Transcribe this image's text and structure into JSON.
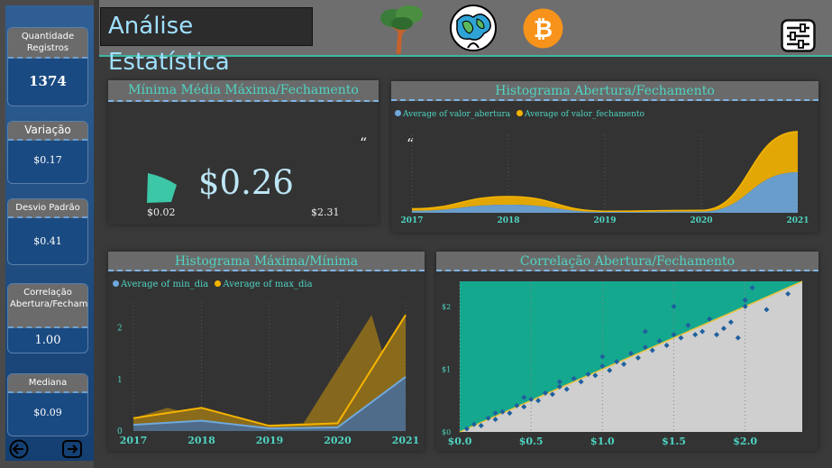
{
  "header": {
    "title": "Análise Estatística"
  },
  "sidebar": {
    "kpis": [
      {
        "label": "Quantidade Registros",
        "value": "1374"
      },
      {
        "label": "Variação",
        "value": "$0.17"
      },
      {
        "label": "Desvio Padrão",
        "value": "$0.41"
      },
      {
        "label": "Correlação Abertura/Fechamento",
        "value": "1.00"
      },
      {
        "label": "Mediana",
        "value": "$0.09"
      }
    ]
  },
  "gauge_panel": {
    "title": "Mínima Média Máxima/Fechamento",
    "value": "$0.26",
    "min": "$0.02",
    "max": "$2.31"
  },
  "hist_open_close": {
    "title": "Histograma Abertura/Fechamento",
    "legend": [
      "Average of valor_abertura",
      "Average of valor_fechamento"
    ]
  },
  "hist_max_min": {
    "title": "Histograma Máxima/Mínima",
    "legend": [
      "Average of min_dia",
      "Average of max_dia"
    ]
  },
  "correlation": {
    "title": "Correlação Abertura/Fechamento"
  },
  "colors": {
    "accent": "#4fd4c1",
    "blue": "#6fa8dc",
    "gold": "#f5b400",
    "teal": "#14a88e"
  },
  "chart_data": [
    {
      "type": "area",
      "x": [
        "2017",
        "2018",
        "2019",
        "2020",
        "2021"
      ],
      "series": [
        {
          "name": "Average of valor_abertura",
          "values": [
            0.05,
            0.2,
            0.02,
            0.03,
            1.0
          ]
        },
        {
          "name": "Average of valor_fechamento",
          "values": [
            0.05,
            0.2,
            0.02,
            0.03,
            1.0
          ]
        }
      ],
      "stacked": true,
      "legend": "top-left"
    },
    {
      "type": "area",
      "x": [
        "2017",
        "2018",
        "2019",
        "2020",
        "2021"
      ],
      "series": [
        {
          "name": "Average of min_dia",
          "values": [
            0.12,
            0.2,
            0.05,
            0.07,
            1.05
          ]
        },
        {
          "name": "Average of max_dia",
          "values": [
            0.25,
            0.45,
            0.1,
            0.15,
            2.25
          ]
        }
      ],
      "yticks": [
        "0",
        "1",
        "2"
      ],
      "ylim": [
        0,
        2.5
      ],
      "legend": "top-left"
    },
    {
      "type": "scatter",
      "xticks": [
        "$0.0",
        "$0.5",
        "$1.0",
        "$1.5",
        "$2.0"
      ],
      "yticks": [
        "$0",
        "$1",
        "$2"
      ],
      "xlim": [
        0,
        2.4
      ],
      "ylim": [
        0,
        2.4
      ],
      "trend_line": true,
      "points": [
        [
          0.05,
          0.05
        ],
        [
          0.1,
          0.12
        ],
        [
          0.15,
          0.1
        ],
        [
          0.2,
          0.22
        ],
        [
          0.25,
          0.2
        ],
        [
          0.3,
          0.32
        ],
        [
          0.35,
          0.3
        ],
        [
          0.4,
          0.42
        ],
        [
          0.45,
          0.4
        ],
        [
          0.5,
          0.52
        ],
        [
          0.55,
          0.5
        ],
        [
          0.6,
          0.62
        ],
        [
          0.65,
          0.6
        ],
        [
          0.7,
          0.72
        ],
        [
          0.75,
          0.68
        ],
        [
          0.8,
          0.85
        ],
        [
          0.85,
          0.8
        ],
        [
          0.9,
          0.92
        ],
        [
          0.95,
          0.9
        ],
        [
          1.0,
          1.05
        ],
        [
          1.05,
          0.98
        ],
        [
          1.1,
          1.12
        ],
        [
          1.15,
          1.08
        ],
        [
          1.2,
          1.25
        ],
        [
          1.25,
          1.18
        ],
        [
          1.3,
          1.35
        ],
        [
          1.35,
          1.3
        ],
        [
          1.4,
          1.45
        ],
        [
          1.45,
          1.38
        ],
        [
          1.5,
          1.55
        ],
        [
          1.55,
          1.5
        ],
        [
          1.6,
          1.7
        ],
        [
          1.65,
          1.55
        ],
        [
          1.7,
          1.6
        ],
        [
          1.75,
          1.8
        ],
        [
          1.8,
          1.55
        ],
        [
          1.85,
          1.65
        ],
        [
          1.95,
          1.5
        ],
        [
          2.0,
          2.0
        ],
        [
          2.0,
          2.1
        ],
        [
          2.15,
          1.95
        ],
        [
          2.3,
          2.2
        ],
        [
          2.05,
          2.3
        ],
        [
          1.5,
          2.0
        ],
        [
          1.3,
          1.6
        ],
        [
          1.0,
          1.2
        ],
        [
          0.7,
          0.8
        ],
        [
          0.45,
          0.55
        ],
        [
          0.25,
          0.3
        ],
        [
          1.9,
          1.75
        ]
      ]
    }
  ]
}
